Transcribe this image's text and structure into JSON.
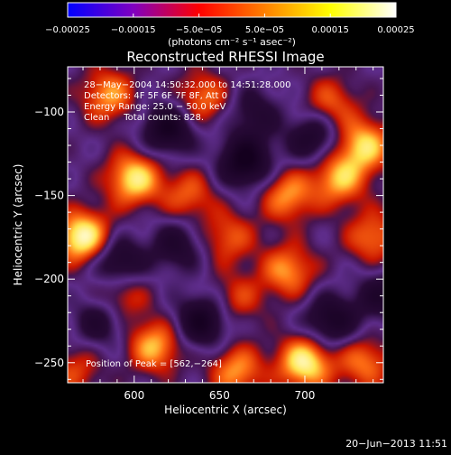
{
  "chart_data": {
    "type": "heatmap",
    "title": "Reconstructed RHESSI Image",
    "xlabel": "Heliocentric X (arcsec)",
    "ylabel": "Heliocentric Y (arcsec)",
    "xlim": [
      561,
      746
    ],
    "ylim": [
      -262,
      -73
    ],
    "x_ticks": [
      "600",
      "650",
      "700"
    ],
    "y_ticks": [
      "−100",
      "−150",
      "−200",
      "−250"
    ],
    "x_tick_values": [
      600,
      650,
      700
    ],
    "y_tick_values": [
      -100,
      -150,
      -200,
      -250
    ],
    "colorbar": {
      "range": [
        -0.00025,
        0.00025
      ],
      "tick_labels": [
        "−0.00025",
        "−0.00015",
        "−5.0e−05",
        "5.0e−05",
        "0.00015",
        "0.00025"
      ],
      "tick_values": [
        -0.00025,
        -0.00015,
        -5e-05,
        5e-05,
        0.00015,
        0.00025
      ],
      "units_text": "(photons cm⁻² s⁻¹ asec⁻²)",
      "colors": [
        "#0000ff",
        "#8000c0",
        "#ff0000",
        "#ff8000",
        "#ffff00",
        "#ffffff"
      ]
    },
    "info_lines": [
      "28−May−2004 14:50:32.000 to 14:51:28.000",
      "Detectors: 4F 5F 6F 7F 8F, Att 0",
      "Energy Range: 25.0 − 50.0 keV",
      "Clean     Total counts: 828."
    ],
    "peak_label": "Position of Peak = [562,−264]",
    "peak_position": [
      562,
      -264
    ],
    "map_colors": {
      "dark": "#100018",
      "purple": "#5a2a90",
      "red": "#e02000",
      "orange": "#ff8a1a",
      "yellow": "#ffe050"
    },
    "features": [
      {
        "x": 585,
        "y": -90,
        "w": 0.8
      },
      {
        "x": 640,
        "y": -92,
        "w": 0.7
      },
      {
        "x": 715,
        "y": -95,
        "w": 0.6
      },
      {
        "x": 735,
        "y": -120,
        "w": 1.0
      },
      {
        "x": 600,
        "y": -140,
        "w": 1.1
      },
      {
        "x": 632,
        "y": -150,
        "w": 0.6
      },
      {
        "x": 690,
        "y": -150,
        "w": 0.8
      },
      {
        "x": 720,
        "y": -140,
        "w": 0.9
      },
      {
        "x": 570,
        "y": -175,
        "w": 1.3
      },
      {
        "x": 655,
        "y": -175,
        "w": 0.6
      },
      {
        "x": 740,
        "y": -175,
        "w": 0.7
      },
      {
        "x": 690,
        "y": -195,
        "w": 0.8
      },
      {
        "x": 592,
        "y": -210,
        "w": 0.6
      },
      {
        "x": 660,
        "y": -212,
        "w": 0.5
      },
      {
        "x": 612,
        "y": -240,
        "w": 0.9
      },
      {
        "x": 700,
        "y": -250,
        "w": 1.2
      },
      {
        "x": 660,
        "y": -255,
        "w": 0.8
      },
      {
        "x": 735,
        "y": -250,
        "w": 0.7
      },
      {
        "x": 565,
        "y": -255,
        "w": 0.5
      },
      {
        "x": 620,
        "y": -110,
        "w": -0.9
      },
      {
        "x": 665,
        "y": -130,
        "w": -1.0
      },
      {
        "x": 705,
        "y": -115,
        "w": -0.7
      },
      {
        "x": 590,
        "y": -190,
        "w": -0.8
      },
      {
        "x": 625,
        "y": -180,
        "w": -0.6
      },
      {
        "x": 640,
        "y": -225,
        "w": -0.9
      },
      {
        "x": 715,
        "y": -225,
        "w": -0.8
      },
      {
        "x": 580,
        "y": -225,
        "w": -0.6
      },
      {
        "x": 745,
        "y": -210,
        "w": -0.6
      },
      {
        "x": 670,
        "y": -100,
        "w": -0.5
      }
    ]
  },
  "footer": {
    "timestamp": "20−Jun−2013 11:51"
  }
}
